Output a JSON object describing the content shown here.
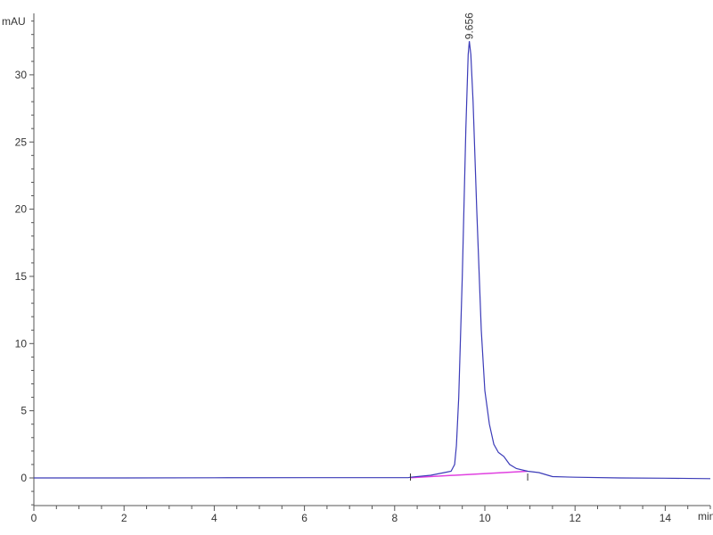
{
  "chart_data": {
    "type": "line",
    "title": "",
    "xlabel": "min",
    "ylabel": "mAU",
    "xlim": [
      0,
      15
    ],
    "ylim": [
      -2,
      34.6
    ],
    "x_ticks": [
      0,
      2,
      4,
      6,
      8,
      10,
      12,
      14
    ],
    "x_tick_labels": [
      "0",
      "2",
      "4",
      "6",
      "8",
      "10",
      "12",
      "14"
    ],
    "y_ticks": [
      0,
      5,
      10,
      15,
      20,
      25,
      30
    ],
    "y_tick_labels": [
      "0",
      "5",
      "10",
      "15",
      "20",
      "25",
      "30"
    ],
    "grid": false,
    "series": [
      {
        "color": "#3b3bb8",
        "x": [
          0,
          2,
          4,
          6,
          8,
          8.3,
          8.35,
          8.8,
          9.1,
          9.25,
          9.33,
          9.37,
          9.42,
          9.5,
          9.58,
          9.63,
          9.656,
          9.69,
          9.74,
          9.82,
          9.92,
          10.0,
          10.1,
          10.2,
          10.3,
          10.42,
          10.55,
          10.7,
          10.95,
          11.2,
          11.4,
          11.5,
          12,
          13,
          14,
          15
        ],
        "y": [
          0,
          0,
          0.01,
          0.02,
          0.02,
          0.02,
          0.05,
          0.2,
          0.4,
          0.5,
          1.0,
          2.4,
          6,
          15,
          26,
          31.5,
          32.5,
          31.5,
          28,
          20,
          11,
          6.5,
          4,
          2.5,
          1.9,
          1.6,
          1.0,
          0.7,
          0.5,
          0.4,
          0.2,
          0.1,
          0.05,
          0.0,
          -0.02,
          -0.05
        ]
      }
    ],
    "integration_baseline": {
      "color": "#e040e0",
      "x": [
        8.35,
        10.95
      ],
      "y": [
        0.02,
        0.5
      ]
    },
    "peak_markers": [
      8.35,
      10.95
    ],
    "annotations": [
      {
        "label": "9.656",
        "x": 9.656,
        "y": 32.5
      }
    ]
  }
}
